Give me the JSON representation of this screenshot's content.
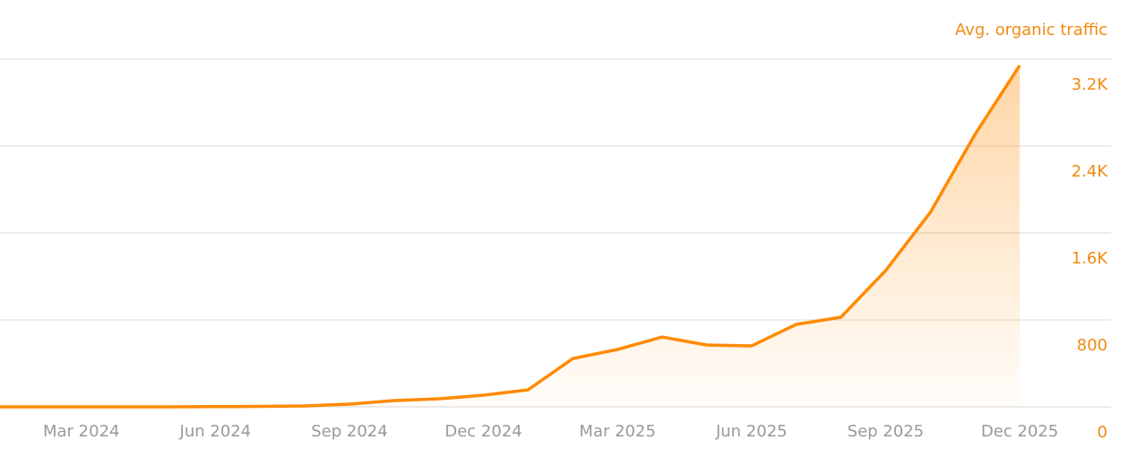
{
  "chart_data": {
    "type": "line",
    "title": "Avg. organic traffic",
    "categories": [
      null,
      null,
      "Mar 2024",
      null,
      null,
      "Jun 2024",
      null,
      null,
      "Sep 2024",
      null,
      null,
      "Dec 2024",
      null,
      null,
      "Mar 2025",
      null,
      null,
      "Jun 2025",
      null,
      null,
      "Sep 2025",
      null,
      null,
      "Dec 2025"
    ],
    "series": [
      {
        "name": "Avg. organic traffic",
        "color": "#ff8a00",
        "values": [
          0,
          0,
          0,
          0,
          0,
          2,
          4,
          8,
          25,
          58,
          74,
          107,
          157,
          445,
          528,
          643,
          569,
          561,
          759,
          825,
          1254,
          1790,
          2507,
          3142
        ]
      }
    ],
    "ylim": [
      0,
      3200
    ],
    "yticks": [
      0,
      800,
      {
        "value": 1600,
        "label": "1.6K"
      },
      {
        "value": 2400,
        "label": "2.4K"
      },
      {
        "value": 3200,
        "label": "3.2K"
      }
    ],
    "grid": true
  }
}
